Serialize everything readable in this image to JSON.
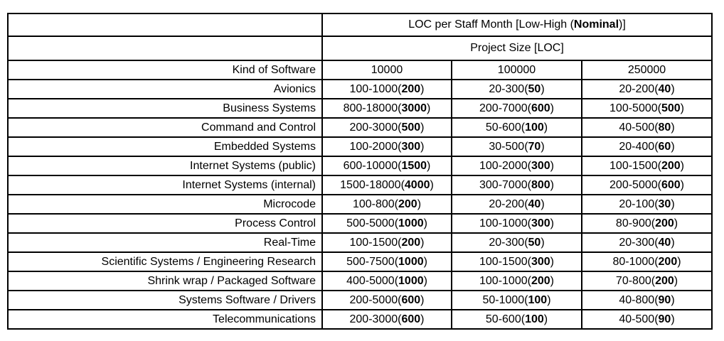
{
  "page": {
    "background": "#ffffff"
  },
  "table": {
    "colors": {
      "border": "#000000",
      "text": "#000000",
      "background": "#ffffff"
    },
    "title": {
      "prefix": "LOC per Staff Month [Low-High (",
      "bold": "Nominal",
      "suffix": ")]"
    },
    "subtitle": "Project Size [LOC]",
    "kind_header": "Kind of Software",
    "size_headers": [
      "10000",
      "100000",
      "250000"
    ],
    "punct": {
      "open": "(",
      "close": ")"
    },
    "rows": [
      {
        "kind": "Avionics",
        "cells": [
          {
            "range": "100-1000",
            "nominal": "200"
          },
          {
            "range": "20-300",
            "nominal": "50"
          },
          {
            "range": "20-200",
            "nominal": "40"
          }
        ]
      },
      {
        "kind": "Business Systems",
        "cells": [
          {
            "range": "800-18000",
            "nominal": "3000"
          },
          {
            "range": "200-7000",
            "nominal": "600"
          },
          {
            "range": "100-5000",
            "nominal": "500"
          }
        ]
      },
      {
        "kind": "Command and Control",
        "cells": [
          {
            "range": "200-3000",
            "nominal": "500"
          },
          {
            "range": "50-600",
            "nominal": "100"
          },
          {
            "range": "40-500",
            "nominal": "80"
          }
        ]
      },
      {
        "kind": "Embedded Systems",
        "cells": [
          {
            "range": "100-2000",
            "nominal": "300"
          },
          {
            "range": "30-500",
            "nominal": "70"
          },
          {
            "range": "20-400",
            "nominal": "60"
          }
        ]
      },
      {
        "kind": "Internet Systems (public)",
        "cells": [
          {
            "range": "600-10000",
            "nominal": "1500"
          },
          {
            "range": "100-2000",
            "nominal": "300"
          },
          {
            "range": "100-1500",
            "nominal": "200"
          }
        ]
      },
      {
        "kind": "Internet Systems (internal)",
        "cells": [
          {
            "range": "1500-18000",
            "nominal": "4000"
          },
          {
            "range": "300-7000",
            "nominal": "800"
          },
          {
            "range": "200-5000",
            "nominal": "600"
          }
        ]
      },
      {
        "kind": "Microcode",
        "cells": [
          {
            "range": "100-800",
            "nominal": "200"
          },
          {
            "range": "20-200",
            "nominal": "40"
          },
          {
            "range": "20-100",
            "nominal": "30"
          }
        ]
      },
      {
        "kind": "Process Control",
        "cells": [
          {
            "range": "500-5000",
            "nominal": "1000"
          },
          {
            "range": "100-1000",
            "nominal": "300"
          },
          {
            "range": "80-900",
            "nominal": "200"
          }
        ]
      },
      {
        "kind": "Real-Time",
        "cells": [
          {
            "range": "100-1500",
            "nominal": "200"
          },
          {
            "range": "20-300",
            "nominal": "50"
          },
          {
            "range": "20-300",
            "nominal": "40"
          }
        ]
      },
      {
        "kind": "Scientific Systems / Engineering Research",
        "cells": [
          {
            "range": "500-7500",
            "nominal": "1000"
          },
          {
            "range": "100-1500",
            "nominal": "300"
          },
          {
            "range": "80-1000",
            "nominal": "200"
          }
        ]
      },
      {
        "kind": "Shrink wrap / Packaged Software",
        "cells": [
          {
            "range": "400-5000",
            "nominal": "1000"
          },
          {
            "range": "100-1000",
            "nominal": "200"
          },
          {
            "range": "70-800",
            "nominal": "200"
          }
        ]
      },
      {
        "kind": "Systems Software / Drivers",
        "cells": [
          {
            "range": "200-5000",
            "nominal": "600"
          },
          {
            "range": "50-1000",
            "nominal": "100"
          },
          {
            "range": "40-800",
            "nominal": "90"
          }
        ]
      },
      {
        "kind": "Telecommunications",
        "cells": [
          {
            "range": "200-3000",
            "nominal": "600"
          },
          {
            "range": "50-600",
            "nominal": "100"
          },
          {
            "range": "40-500",
            "nominal": "90"
          }
        ]
      }
    ]
  }
}
